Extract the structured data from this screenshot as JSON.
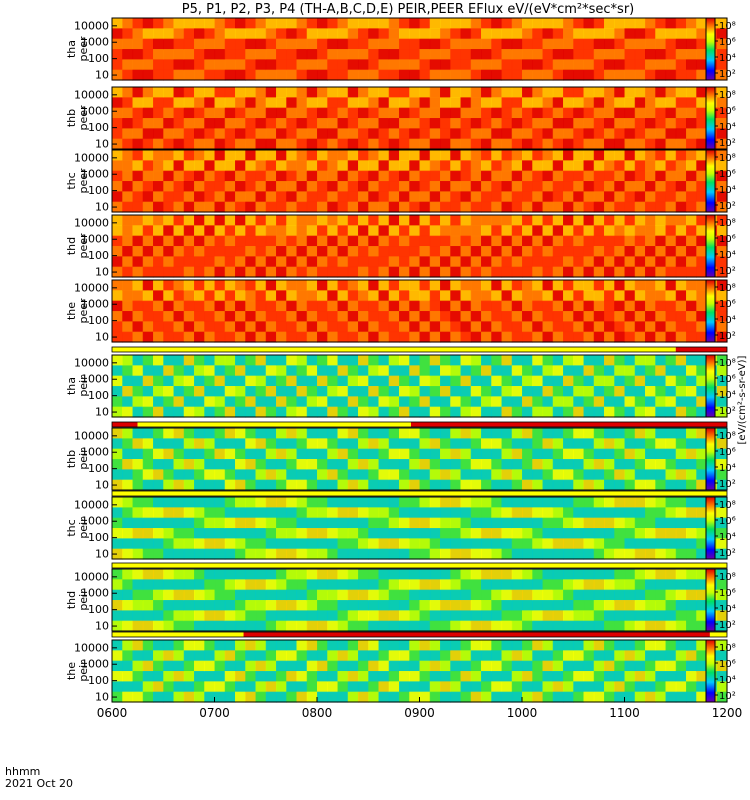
{
  "title": "P5, P1, P2, P3, P4 (TH-A,B,C,D,E) PEIR,PEER EFlux eV/(eV*cm²*sec*sr)",
  "x_axis": {
    "ticks": [
      "0600",
      "0700",
      "0800",
      "0900",
      "1000",
      "1100",
      "1200"
    ],
    "label_line1": "hhmm",
    "label_line2": "2021 Oct 20"
  },
  "colorbar_label": "[eV/(cm²-s-sr-eV)]",
  "colorbar_ticks": [
    "10⁸",
    "10⁶",
    "10⁴",
    "10²"
  ],
  "yticks": [
    "10000",
    "1000",
    "100",
    "10"
  ],
  "colors": {
    "background": "#ffffff",
    "frame": "#000000",
    "good_quality": "#ffff00",
    "flag": "#dd0000",
    "no_data": "#000000"
  },
  "chart_data": {
    "type": "heatmap",
    "x_unit": "time (hhmm UT)",
    "x_range": [
      "0600",
      "1200"
    ],
    "y_unit": "energy (eV)",
    "y_range": [
      5,
      30000
    ],
    "y_scale": "log",
    "color_scale": "log",
    "color_range": [
      10,
      100000000
    ],
    "panels": [
      {
        "id": "tha-peer",
        "ylabel_top": "tha",
        "ylabel_bottom": "peer",
        "color_ticks": [
          "10⁸",
          "10⁶",
          "10⁴",
          "10²"
        ]
      },
      {
        "id": "thb-peer",
        "ylabel_top": "thb",
        "ylabel_bottom": "peer",
        "color_ticks": [
          "10⁸",
          "10⁶",
          "10⁴",
          "10²"
        ]
      },
      {
        "id": "thc-peer",
        "ylabel_top": "thc",
        "ylabel_bottom": "peer",
        "color_ticks": [
          "10⁸",
          "10⁶",
          "10⁴",
          "10²"
        ]
      },
      {
        "id": "thd-peer",
        "ylabel_top": "thd",
        "ylabel_bottom": "peer",
        "color_ticks": [
          "10⁸",
          "10⁶",
          "10⁴",
          "10²"
        ]
      },
      {
        "id": "the-peer",
        "ylabel_top": "the",
        "ylabel_bottom": "peer",
        "color_ticks": [
          "10⁸",
          "10⁶",
          "10⁴",
          "10²"
        ]
      },
      {
        "id": "tha-peir",
        "ylabel_top": "tha",
        "ylabel_bottom": "peir",
        "color_ticks": [
          "10⁸",
          "10⁶",
          "10⁴",
          "10²"
        ]
      },
      {
        "id": "thb-peir",
        "ylabel_top": "thb",
        "ylabel_bottom": "peir",
        "color_ticks": [
          "10⁸",
          "10⁶",
          "10⁴",
          "10²"
        ]
      },
      {
        "id": "thc-peir",
        "ylabel_top": "thc",
        "ylabel_bottom": "peir",
        "color_ticks": [
          "10⁸",
          "10⁶",
          "10⁴",
          "10²"
        ]
      },
      {
        "id": "thd-peir",
        "ylabel_top": "thd",
        "ylabel_bottom": "peir",
        "color_ticks": [
          "10⁸",
          "10⁶",
          "10⁴",
          "10²"
        ]
      },
      {
        "id": "the-peir",
        "ylabel_top": "the",
        "ylabel_bottom": "peir",
        "color_ticks": [
          "10⁸",
          "10⁶",
          "10⁴",
          "10²"
        ]
      }
    ],
    "quality_bars": [
      {
        "above_panel": "tha-peir",
        "segments": [
          {
            "from": "0600",
            "to": "1130",
            "status": "good"
          },
          {
            "from": "1130",
            "to": "1200",
            "status": "flag"
          }
        ]
      },
      {
        "above_panel": "thb-peir",
        "segments": [
          {
            "from": "0600",
            "to": "0615",
            "status": "flag"
          },
          {
            "from": "0615",
            "to": "0855",
            "status": "good"
          },
          {
            "from": "0855",
            "to": "1200",
            "status": "flag"
          }
        ]
      },
      {
        "above_panel": "thc-peir",
        "segments": [
          {
            "from": "0600",
            "to": "1200",
            "status": "good"
          }
        ]
      },
      {
        "above_panel": "thd-peir",
        "segments": [
          {
            "from": "0600",
            "to": "1200",
            "status": "good"
          }
        ]
      },
      {
        "above_panel": "the-peir",
        "segments": [
          {
            "from": "0600",
            "to": "0717",
            "status": "good"
          },
          {
            "from": "0717",
            "to": "1150",
            "status": "flag"
          },
          {
            "from": "1150",
            "to": "1200",
            "status": "good"
          }
        ]
      }
    ]
  }
}
